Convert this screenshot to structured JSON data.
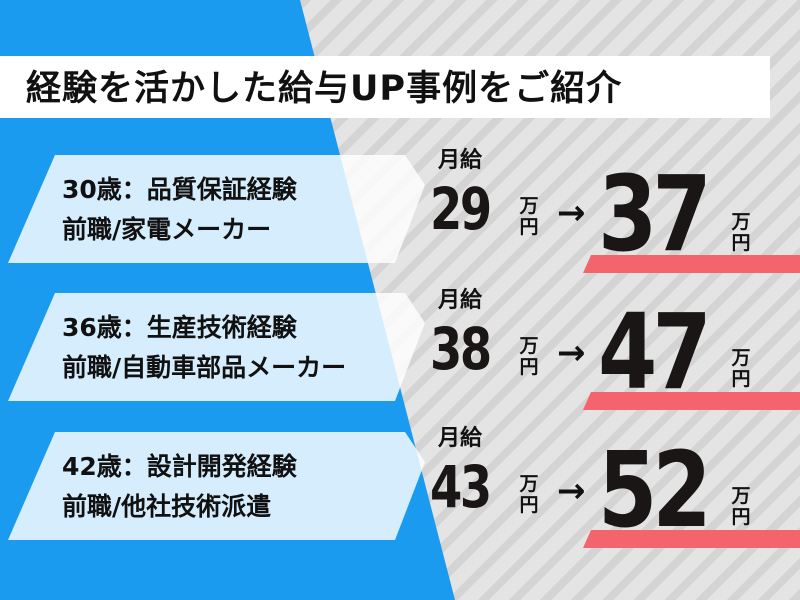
{
  "title": "経験を活かした給与UP事例をご紹介",
  "colors": {
    "blue": "#1a9bf0",
    "red": "#f4646c",
    "text": "#1b1616"
  },
  "unit_man": "万",
  "unit_en": "円",
  "arrow": "→",
  "cases": [
    {
      "line1": "30歳：品質保証経験",
      "line2": "前職/家電メーカー",
      "label": "月給",
      "from": "29",
      "to": "37"
    },
    {
      "line1": "36歳：生産技術経験",
      "line2": "前職/自動車部品メーカー",
      "label": "月給",
      "from": "38",
      "to": "47"
    },
    {
      "line1": "42歳：設計開発経験",
      "line2": "前職/他社技術派遣",
      "label": "月給",
      "from": "43",
      "to": "52"
    }
  ]
}
